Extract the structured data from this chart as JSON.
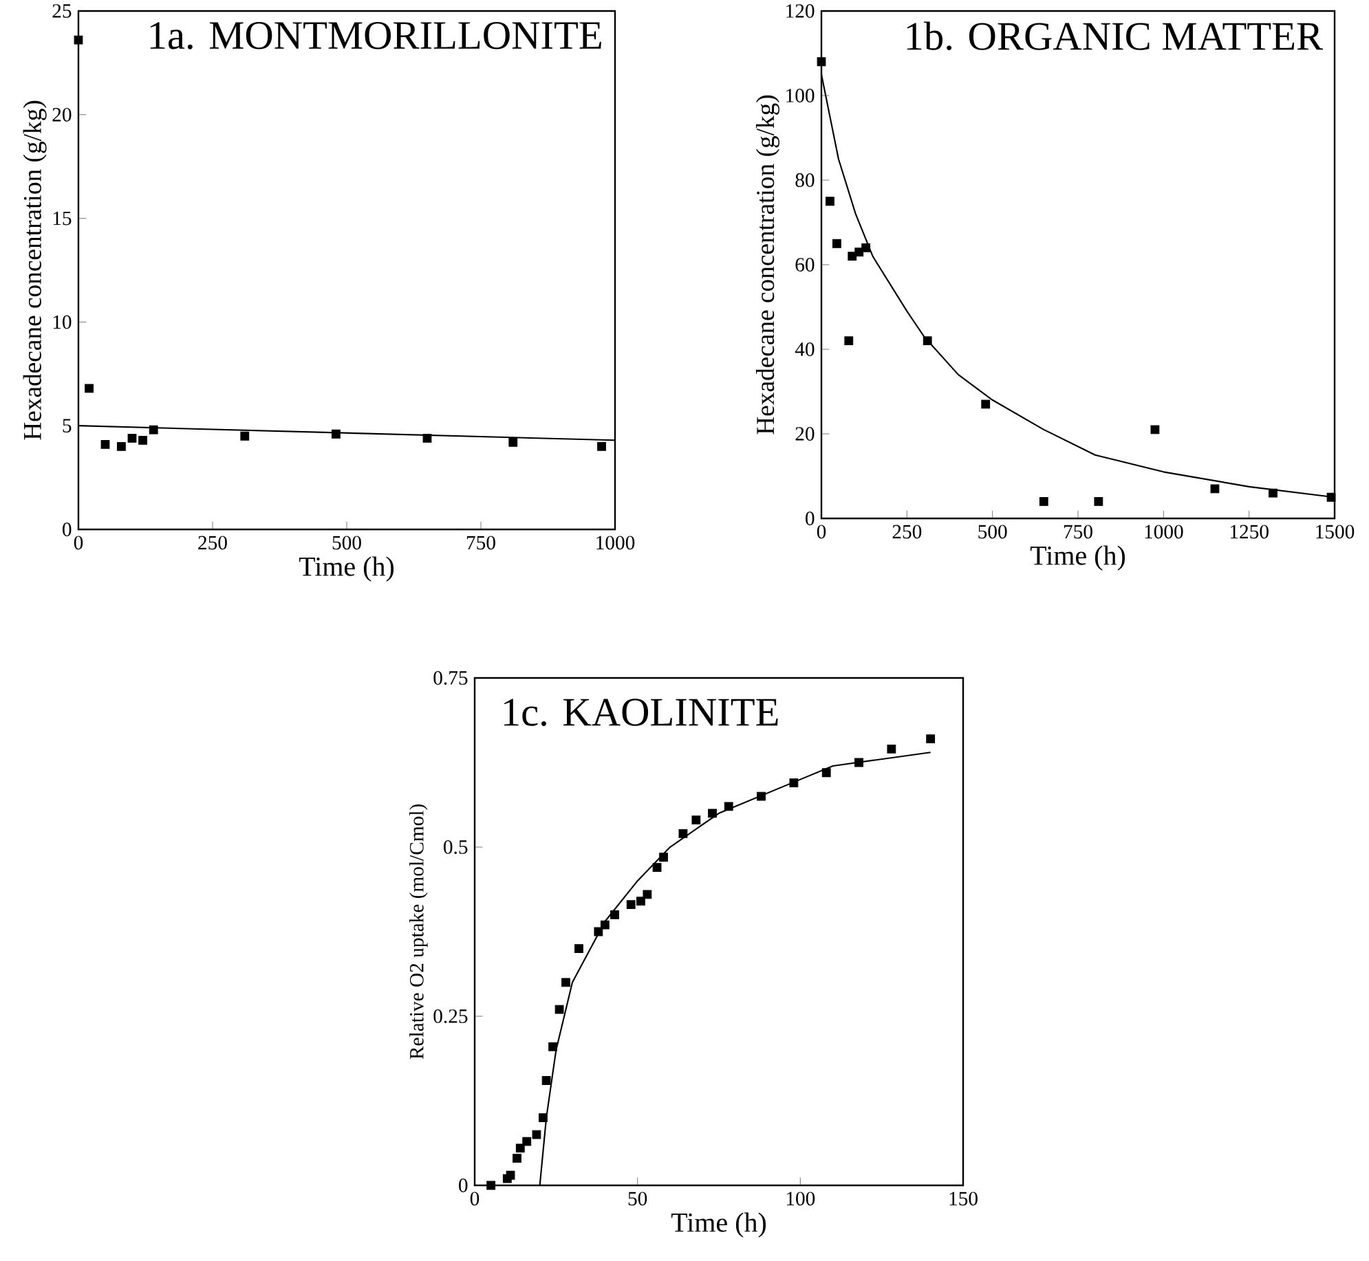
{
  "chart_data": [
    {
      "type": "scatter",
      "title": "1a. MONTMORILLONITE",
      "xlabel": "Time (h)",
      "ylabel": "Hexadecane concentration (g/kg)",
      "xlim": [
        0,
        1000
      ],
      "ylim": [
        0,
        25
      ],
      "xticks": [
        0,
        250,
        500,
        750,
        1000
      ],
      "yticks": [
        0,
        5,
        10,
        15,
        20,
        25
      ],
      "series": [
        {
          "color": "#000000",
          "marker": "square",
          "x": [
            0,
            20,
            50,
            80,
            100,
            120,
            140,
            310,
            480,
            650,
            810,
            975
          ],
          "values": [
            23.6,
            6.8,
            4.1,
            4.0,
            4.4,
            4.3,
            4.8,
            4.5,
            4.6,
            4.4,
            4.2,
            4.0
          ]
        },
        {
          "type": "line",
          "color": "#000000",
          "marker": "none",
          "line_style": "solid",
          "x": [
            0,
            1000
          ],
          "values": [
            5.0,
            4.3
          ]
        }
      ]
    },
    {
      "type": "scatter",
      "title": "1b. ORGANIC MATTER",
      "xlabel": "Time (h)",
      "ylabel": "Hexadecane concentration (g/kg)",
      "xlim": [
        0,
        1500
      ],
      "ylim": [
        0,
        120
      ],
      "xticks": [
        0,
        250,
        500,
        750,
        1000,
        1250,
        1500
      ],
      "yticks": [
        0,
        20,
        40,
        60,
        80,
        100,
        120
      ],
      "series": [
        {
          "color": "#000000",
          "marker": "square",
          "x": [
            0,
            25,
            45,
            80,
            90,
            110,
            130,
            310,
            480,
            650,
            810,
            975,
            1150,
            1320,
            1490
          ],
          "values": [
            108,
            75,
            65,
            42,
            62,
            63,
            64,
            42,
            27,
            4,
            4,
            21,
            7,
            6,
            5
          ]
        },
        {
          "type": "line",
          "color": "#000000",
          "marker": "none",
          "line_style": "solid",
          "x": [
            0,
            25,
            50,
            100,
            150,
            250,
            300,
            400,
            500,
            650,
            800,
            1000,
            1250,
            1500
          ],
          "values": [
            105,
            95,
            85,
            72,
            62,
            49,
            43,
            34,
            28,
            21,
            15,
            11,
            7.5,
            5
          ]
        }
      ]
    },
    {
      "type": "scatter",
      "title": "1c. KAOLINITE",
      "xlabel": "Time (h)",
      "ylabel": "Relative O2 uptake (mol/Cmol)",
      "xlim": [
        0,
        150
      ],
      "ylim": [
        0,
        0.75
      ],
      "xticks": [
        0,
        50,
        100,
        150
      ],
      "yticks": [
        0,
        0.25,
        0.5,
        0.75
      ],
      "series": [
        {
          "color": "#000000",
          "marker": "square",
          "x": [
            5,
            10,
            11,
            13,
            14,
            16,
            19,
            21,
            22,
            24,
            26,
            28,
            32,
            38,
            40,
            43,
            48,
            51,
            53,
            56,
            58,
            64,
            68,
            73,
            78,
            88,
            98,
            108,
            118,
            128,
            140
          ],
          "values": [
            0,
            0.01,
            0.015,
            0.04,
            0.055,
            0.065,
            0.075,
            0.1,
            0.155,
            0.205,
            0.26,
            0.3,
            0.35,
            0.375,
            0.385,
            0.4,
            0.415,
            0.42,
            0.43,
            0.47,
            0.485,
            0.52,
            0.54,
            0.55,
            0.56,
            0.575,
            0.595,
            0.61,
            0.625,
            0.645,
            0.66
          ]
        },
        {
          "type": "line",
          "color": "#000000",
          "marker": "none",
          "line_style": "solid",
          "x": [
            20,
            22,
            25,
            30,
            40,
            50,
            60,
            75,
            100,
            110,
            140
          ],
          "values": [
            0,
            0.1,
            0.2,
            0.3,
            0.39,
            0.45,
            0.5,
            0.55,
            0.6,
            0.62,
            0.64
          ]
        }
      ]
    }
  ]
}
